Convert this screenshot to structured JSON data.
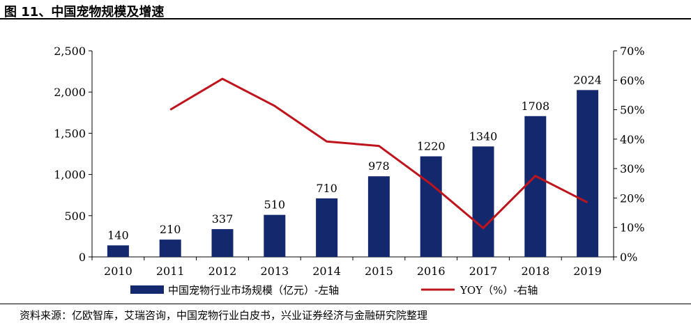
{
  "figure": {
    "title": "图 11、中国宠物规模及增速",
    "source": "资料来源：亿欧智库，艾瑞咨询，中国宠物行业白皮书，兴业证券经济与金融研究院整理"
  },
  "chart_data": {
    "type": "bar",
    "categories": [
      "2010",
      "2011",
      "2012",
      "2013",
      "2014",
      "2015",
      "2016",
      "2017",
      "2018",
      "2019"
    ],
    "series": [
      {
        "name": "中国宠物行业市场规模（亿元）-左轴",
        "type": "bar",
        "axis": "left",
        "color": "#14286e",
        "values": [
          140,
          210,
          337,
          510,
          710,
          978,
          1220,
          1340,
          1708,
          2024
        ],
        "labels": [
          "140",
          "210",
          "337",
          "510",
          "710",
          "978",
          "1220",
          "1340",
          "1708",
          "2024"
        ]
      },
      {
        "name": "YOY（%）-右轴",
        "type": "line",
        "axis": "right",
        "color": "#c0141c",
        "values": [
          null,
          50.0,
          60.5,
          51.3,
          39.2,
          37.7,
          24.7,
          9.8,
          27.5,
          18.5
        ]
      }
    ],
    "y_left": {
      "ylim": [
        0,
        2500
      ],
      "ticks": [
        0,
        500,
        1000,
        1500,
        2000,
        2500
      ],
      "tick_labels": [
        "0",
        "500",
        "1,000",
        "1,500",
        "2,000",
        "2,500"
      ]
    },
    "y_right": {
      "ylim": [
        0,
        70
      ],
      "ticks": [
        0,
        10,
        20,
        30,
        40,
        50,
        60,
        70
      ],
      "tick_labels": [
        "0%",
        "10%",
        "20%",
        "30%",
        "40%",
        "50%",
        "60%",
        "70%"
      ]
    },
    "xlabel": "",
    "grid": false,
    "legend": "bottom"
  }
}
